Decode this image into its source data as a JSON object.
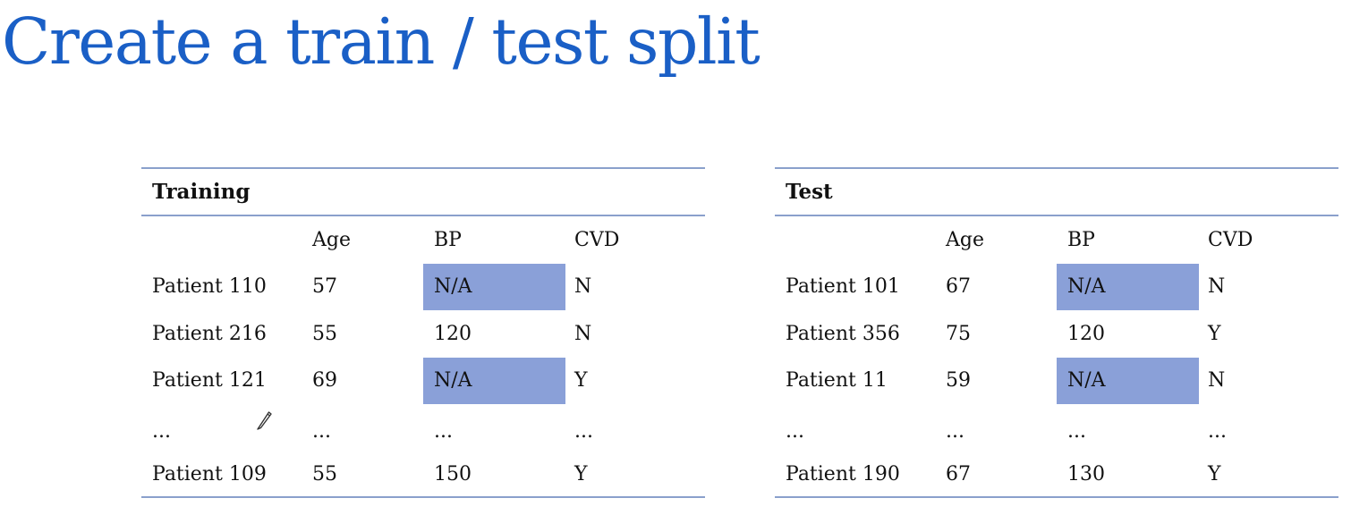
{
  "title": "Create a train / test split",
  "colors": {
    "title": "#1a5fc6",
    "rule": "#8aa0cc",
    "highlight": "#8aa0d8"
  },
  "training": {
    "heading": "Training",
    "columns": [
      "",
      "Age",
      "BP",
      "CVD"
    ],
    "rows": [
      {
        "name": "Patient 110",
        "age": "57",
        "bp": "N/A",
        "cvd": "N",
        "highlight": true
      },
      {
        "name": "Patient 216",
        "age": "55",
        "bp": "120",
        "cvd": "N",
        "highlight": false
      },
      {
        "name": "Patient 121",
        "age": "69",
        "bp": "N/A",
        "cvd": "Y",
        "highlight": true
      },
      {
        "name": "...",
        "age": "...",
        "bp": "...",
        "cvd": "...",
        "highlight": false
      },
      {
        "name": "Patient 109",
        "age": "55",
        "bp": "150",
        "cvd": "Y",
        "highlight": false
      }
    ]
  },
  "test": {
    "heading": "Test",
    "columns": [
      "",
      "Age",
      "BP",
      "CVD"
    ],
    "rows": [
      {
        "name": "Patient 101",
        "age": "67",
        "bp": "N/A",
        "cvd": "N",
        "highlight": true
      },
      {
        "name": "Patient 356",
        "age": "75",
        "bp": "120",
        "cvd": "Y",
        "highlight": false
      },
      {
        "name": "Patient 11",
        "age": "59",
        "bp": "N/A",
        "cvd": "N",
        "highlight": true
      },
      {
        "name": "...",
        "age": "...",
        "bp": "...",
        "cvd": "...",
        "highlight": false
      },
      {
        "name": "Patient 190",
        "age": "67",
        "bp": "130",
        "cvd": "Y",
        "highlight": false
      }
    ]
  },
  "icons": {
    "annotation_cursor": "pencil-icon"
  }
}
